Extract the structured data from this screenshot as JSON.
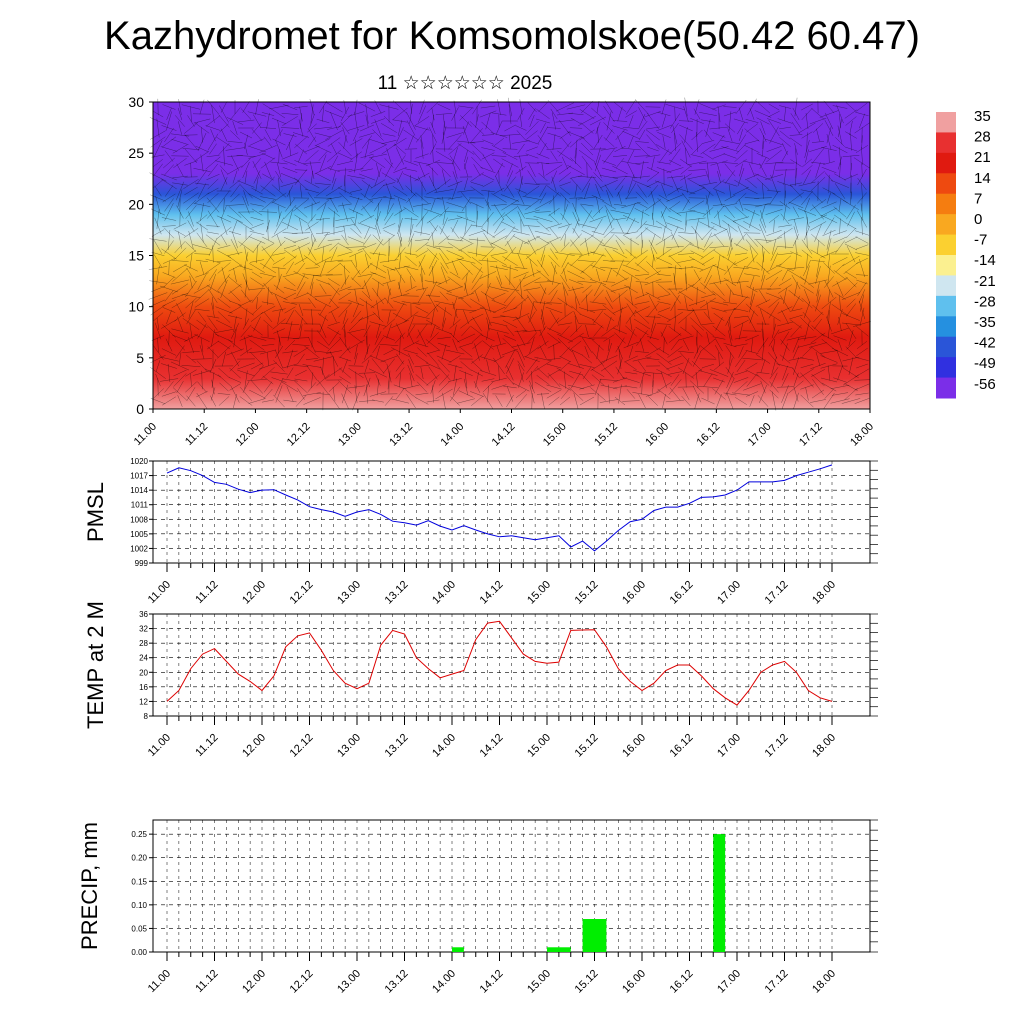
{
  "page": {
    "title": "Kazhydromet for Komsomolskoe(50.42 60.47)",
    "subtitle": "11 ☆☆☆☆☆☆ 2025"
  },
  "chart_data": [
    {
      "type": "heatmap",
      "title": "",
      "xlabel": "",
      "ylabel": "",
      "x_ticks": [
        "11.00",
        "11.12",
        "12.00",
        "12.12",
        "13.00",
        "13.12",
        "14.00",
        "14.12",
        "15.00",
        "15.12",
        "16.00",
        "16.12",
        "17.00",
        "17.12",
        "18.00"
      ],
      "y_ticks": [
        0,
        5,
        10,
        15,
        20,
        25,
        30
      ],
      "ylim": [
        0,
        30
      ],
      "colorbar_labels": [
        35,
        28,
        21,
        14,
        7,
        0,
        -7,
        -14,
        -21,
        -28,
        -35,
        -42,
        -49,
        -56
      ],
      "colorbar_colors": [
        "#f0a0a0",
        "#e83030",
        "#e01a10",
        "#ee4a10",
        "#f57d10",
        "#f9a820",
        "#fbd030",
        "#fbf090",
        "#cfe6f0",
        "#5fc0ee",
        "#2590e0",
        "#2a55d8",
        "#3030e0",
        "#7b2ee8"
      ],
      "profile": [
        {
          "height": 0,
          "temp": 30
        },
        {
          "height": 3,
          "temp": 26
        },
        {
          "height": 7,
          "temp": 18
        },
        {
          "height": 10,
          "temp": 12
        },
        {
          "height": 13,
          "temp": 2
        },
        {
          "height": 15,
          "temp": -8
        },
        {
          "height": 17,
          "temp": -17
        },
        {
          "height": 19,
          "temp": -28
        },
        {
          "height": 21,
          "temp": -40
        },
        {
          "height": 23,
          "temp": -52
        },
        {
          "height": 24.5,
          "temp": -58
        },
        {
          "height": 26,
          "temp": -55
        },
        {
          "height": 28,
          "temp": -52
        },
        {
          "height": 30,
          "temp": -56
        }
      ]
    },
    {
      "type": "line",
      "title": "",
      "xlabel": "",
      "ylabel": "PMSL",
      "x_ticks": [
        "11.00",
        "11.12",
        "12.00",
        "12.12",
        "13.00",
        "13.12",
        "14.00",
        "14.12",
        "15.00",
        "15.12",
        "16.00",
        "16.12",
        "17.00",
        "17.12",
        "18.00"
      ],
      "y_ticks": [
        999,
        1002,
        1005,
        1008,
        1011,
        1014,
        1017,
        1020
      ],
      "ylim": [
        999,
        1020
      ],
      "color": "#0000dd",
      "series": [
        {
          "values": [
            1017.5,
            1018.6,
            1018.0,
            1017.0,
            1015.6,
            1015.2,
            1014.2,
            1013.5,
            1014.0,
            1014.1,
            1013.0,
            1012.0,
            1010.6,
            1010.0,
            1009.5,
            1008.6,
            1009.5,
            1010.0,
            1009.0,
            1007.6,
            1007.3,
            1006.8,
            1007.7,
            1006.6,
            1005.8,
            1006.7,
            1005.8,
            1005.0,
            1004.4,
            1004.6,
            1004.2,
            1003.8,
            1004.2,
            1004.6,
            1002.3,
            1003.5,
            1001.5,
            1003.5,
            1005.7,
            1007.5,
            1008.0,
            1009.8,
            1010.5,
            1010.5,
            1011.3,
            1012.5,
            1012.6,
            1013.0,
            1014.0,
            1015.7,
            1015.7,
            1015.7,
            1016.0,
            1017.0,
            1017.7,
            1018.4,
            1019.2
          ]
        }
      ]
    },
    {
      "type": "line",
      "title": "",
      "xlabel": "",
      "ylabel": "TEMP at 2 M",
      "x_ticks": [
        "11.00",
        "11.12",
        "12.00",
        "12.12",
        "13.00",
        "13.12",
        "14.00",
        "14.12",
        "15.00",
        "15.12",
        "16.00",
        "16.12",
        "17.00",
        "17.12",
        "18.00"
      ],
      "y_ticks": [
        8,
        12,
        16,
        20,
        24,
        28,
        32,
        36
      ],
      "ylim": [
        8,
        36
      ],
      "color": "#dd0000",
      "series": [
        {
          "values": [
            12,
            15,
            21,
            25,
            26.5,
            23,
            19.5,
            17.5,
            15,
            19,
            27,
            30,
            30.8,
            26,
            20.5,
            17,
            15.5,
            17,
            27.5,
            31.5,
            30.5,
            24,
            21,
            18.5,
            19.5,
            20.5,
            29,
            33.5,
            34,
            29.5,
            25,
            23,
            22.5,
            22.8,
            31.5,
            31.6,
            31.7,
            27,
            21,
            17.5,
            15,
            17,
            20.5,
            22,
            22,
            19,
            15.5,
            13,
            11,
            15,
            20,
            22,
            23,
            20,
            15,
            13,
            12
          ]
        }
      ]
    },
    {
      "type": "bar",
      "title": "",
      "xlabel": "",
      "ylabel": "PRECIP, mm",
      "x_ticks": [
        "11.00",
        "11.12",
        "12.00",
        "12.12",
        "13.00",
        "13.12",
        "14.00",
        "14.12",
        "15.00",
        "15.12",
        "16.00",
        "16.12",
        "17.00",
        "17.12",
        "18.00"
      ],
      "y_ticks": [
        "0.00",
        "0.05",
        "0.10",
        "0.15",
        "0.20",
        "0.25"
      ],
      "ylim": [
        0,
        0.28
      ],
      "color": "#00ee00",
      "bars": [
        {
          "time_index": 24.5,
          "width": 1,
          "value": 0.01
        },
        {
          "time_index": 33,
          "width": 2,
          "value": 0.01
        },
        {
          "time_index": 36,
          "width": 2,
          "value": 0.07
        },
        {
          "time_index": 46.5,
          "width": 1,
          "value": 0.25
        }
      ]
    }
  ]
}
